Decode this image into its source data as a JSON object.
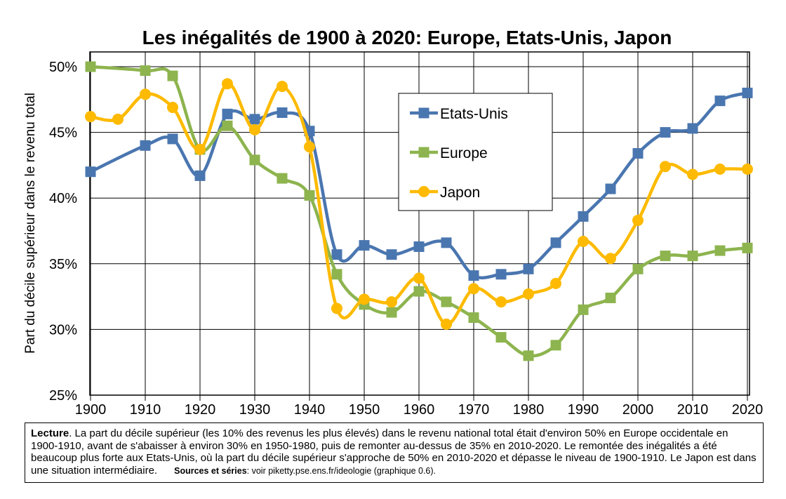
{
  "chart_data": {
    "type": "line",
    "title": "Les inégalités de 1900 à 2020: Europe, Etats-Unis, Japon",
    "ylabel": "Part du décile supérieur dans le revenu total",
    "xlabel": "",
    "xlim": [
      1900,
      2020
    ],
    "ylim": [
      0.25,
      0.5
    ],
    "x_ticks": [
      1900,
      1910,
      1920,
      1930,
      1940,
      1950,
      1960,
      1970,
      1980,
      1990,
      2000,
      2010,
      2020
    ],
    "x_tick_labels": [
      "1900",
      "1910",
      "1920",
      "1930",
      "1940",
      "1950",
      "1960",
      "1970",
      "1980",
      "1990",
      "2000",
      "2010",
      "2020"
    ],
    "y_ticks": [
      0.25,
      0.3,
      0.35,
      0.4,
      0.45,
      0.5
    ],
    "y_tick_labels": [
      "25%",
      "30%",
      "35%",
      "40%",
      "45%",
      "50%"
    ],
    "grid": true,
    "legend_position": "top-center",
    "series": [
      {
        "name": "Etats-Unis",
        "color": "#4a76b0",
        "marker": "square",
        "points": [
          [
            1900,
            0.42
          ],
          [
            1910,
            0.44
          ],
          [
            1915,
            0.445
          ],
          [
            1920,
            0.417
          ],
          [
            1925,
            0.464
          ],
          [
            1930,
            0.46
          ],
          [
            1935,
            0.465
          ],
          [
            1940,
            0.451
          ],
          [
            1945,
            0.357
          ],
          [
            1950,
            0.364
          ],
          [
            1955,
            0.357
          ],
          [
            1960,
            0.363
          ],
          [
            1965,
            0.366
          ],
          [
            1970,
            0.341
          ],
          [
            1975,
            0.342
          ],
          [
            1980,
            0.346
          ],
          [
            1985,
            0.366
          ],
          [
            1990,
            0.386
          ],
          [
            1995,
            0.407
          ],
          [
            2000,
            0.434
          ],
          [
            2005,
            0.45
          ],
          [
            2010,
            0.453
          ],
          [
            2015,
            0.474
          ],
          [
            2020,
            0.48
          ]
        ]
      },
      {
        "name": "Europe",
        "color": "#8db44e",
        "marker": "square",
        "points": [
          [
            1900,
            0.5
          ],
          [
            1910,
            0.497
          ],
          [
            1915,
            0.493
          ],
          [
            1920,
            0.437
          ],
          [
            1925,
            0.455
          ],
          [
            1930,
            0.429
          ],
          [
            1935,
            0.415
          ],
          [
            1940,
            0.402
          ],
          [
            1945,
            0.342
          ],
          [
            1950,
            0.319
          ],
          [
            1955,
            0.313
          ],
          [
            1960,
            0.329
          ],
          [
            1965,
            0.321
          ],
          [
            1970,
            0.309
          ],
          [
            1975,
            0.294
          ],
          [
            1980,
            0.28
          ],
          [
            1985,
            0.288
          ],
          [
            1990,
            0.315
          ],
          [
            1995,
            0.324
          ],
          [
            2000,
            0.346
          ],
          [
            2005,
            0.356
          ],
          [
            2010,
            0.356
          ],
          [
            2015,
            0.36
          ],
          [
            2020,
            0.362
          ]
        ]
      },
      {
        "name": "Japon",
        "color": "#fdba00",
        "marker": "circle",
        "points": [
          [
            1900,
            0.462
          ],
          [
            1905,
            0.46
          ],
          [
            1910,
            0.479
          ],
          [
            1915,
            0.469
          ],
          [
            1920,
            0.437
          ],
          [
            1925,
            0.487
          ],
          [
            1930,
            0.452
          ],
          [
            1935,
            0.485
          ],
          [
            1940,
            0.439
          ],
          [
            1945,
            0.316
          ],
          [
            1950,
            0.323
          ],
          [
            1955,
            0.321
          ],
          [
            1960,
            0.339
          ],
          [
            1965,
            0.304
          ],
          [
            1970,
            0.331
          ],
          [
            1975,
            0.321
          ],
          [
            1980,
            0.327
          ],
          [
            1985,
            0.335
          ],
          [
            1990,
            0.367
          ],
          [
            1995,
            0.354
          ],
          [
            2000,
            0.383
          ],
          [
            2005,
            0.424
          ],
          [
            2010,
            0.418
          ],
          [
            2015,
            0.422
          ],
          [
            2020,
            0.422
          ]
        ]
      }
    ]
  },
  "reading_note": {
    "label": "Lecture",
    "text": ". La part du décile supérieur (les 10% des revenus les plus élevés) dans le revenu national total était d'environ 50% en Europe occidentale en 1900-1910, avant de s'abaisser à environ 30% en 1950-1980, puis de remonter au-dessus de 35% en 2010-2020. Le remontée des inégalités a été beaucoup plus forte aux Etats-Unis, où la part du décile supérieur s'approche de 50% en 2010-2020 et dépasse le niveau de 1900-1910. Le Japon est dans une situation intermédiaire.",
    "sources_label": "Sources et séries",
    "sources_text": ": voir piketty.pse.ens.fr/ideologie (graphique 0.6)."
  }
}
